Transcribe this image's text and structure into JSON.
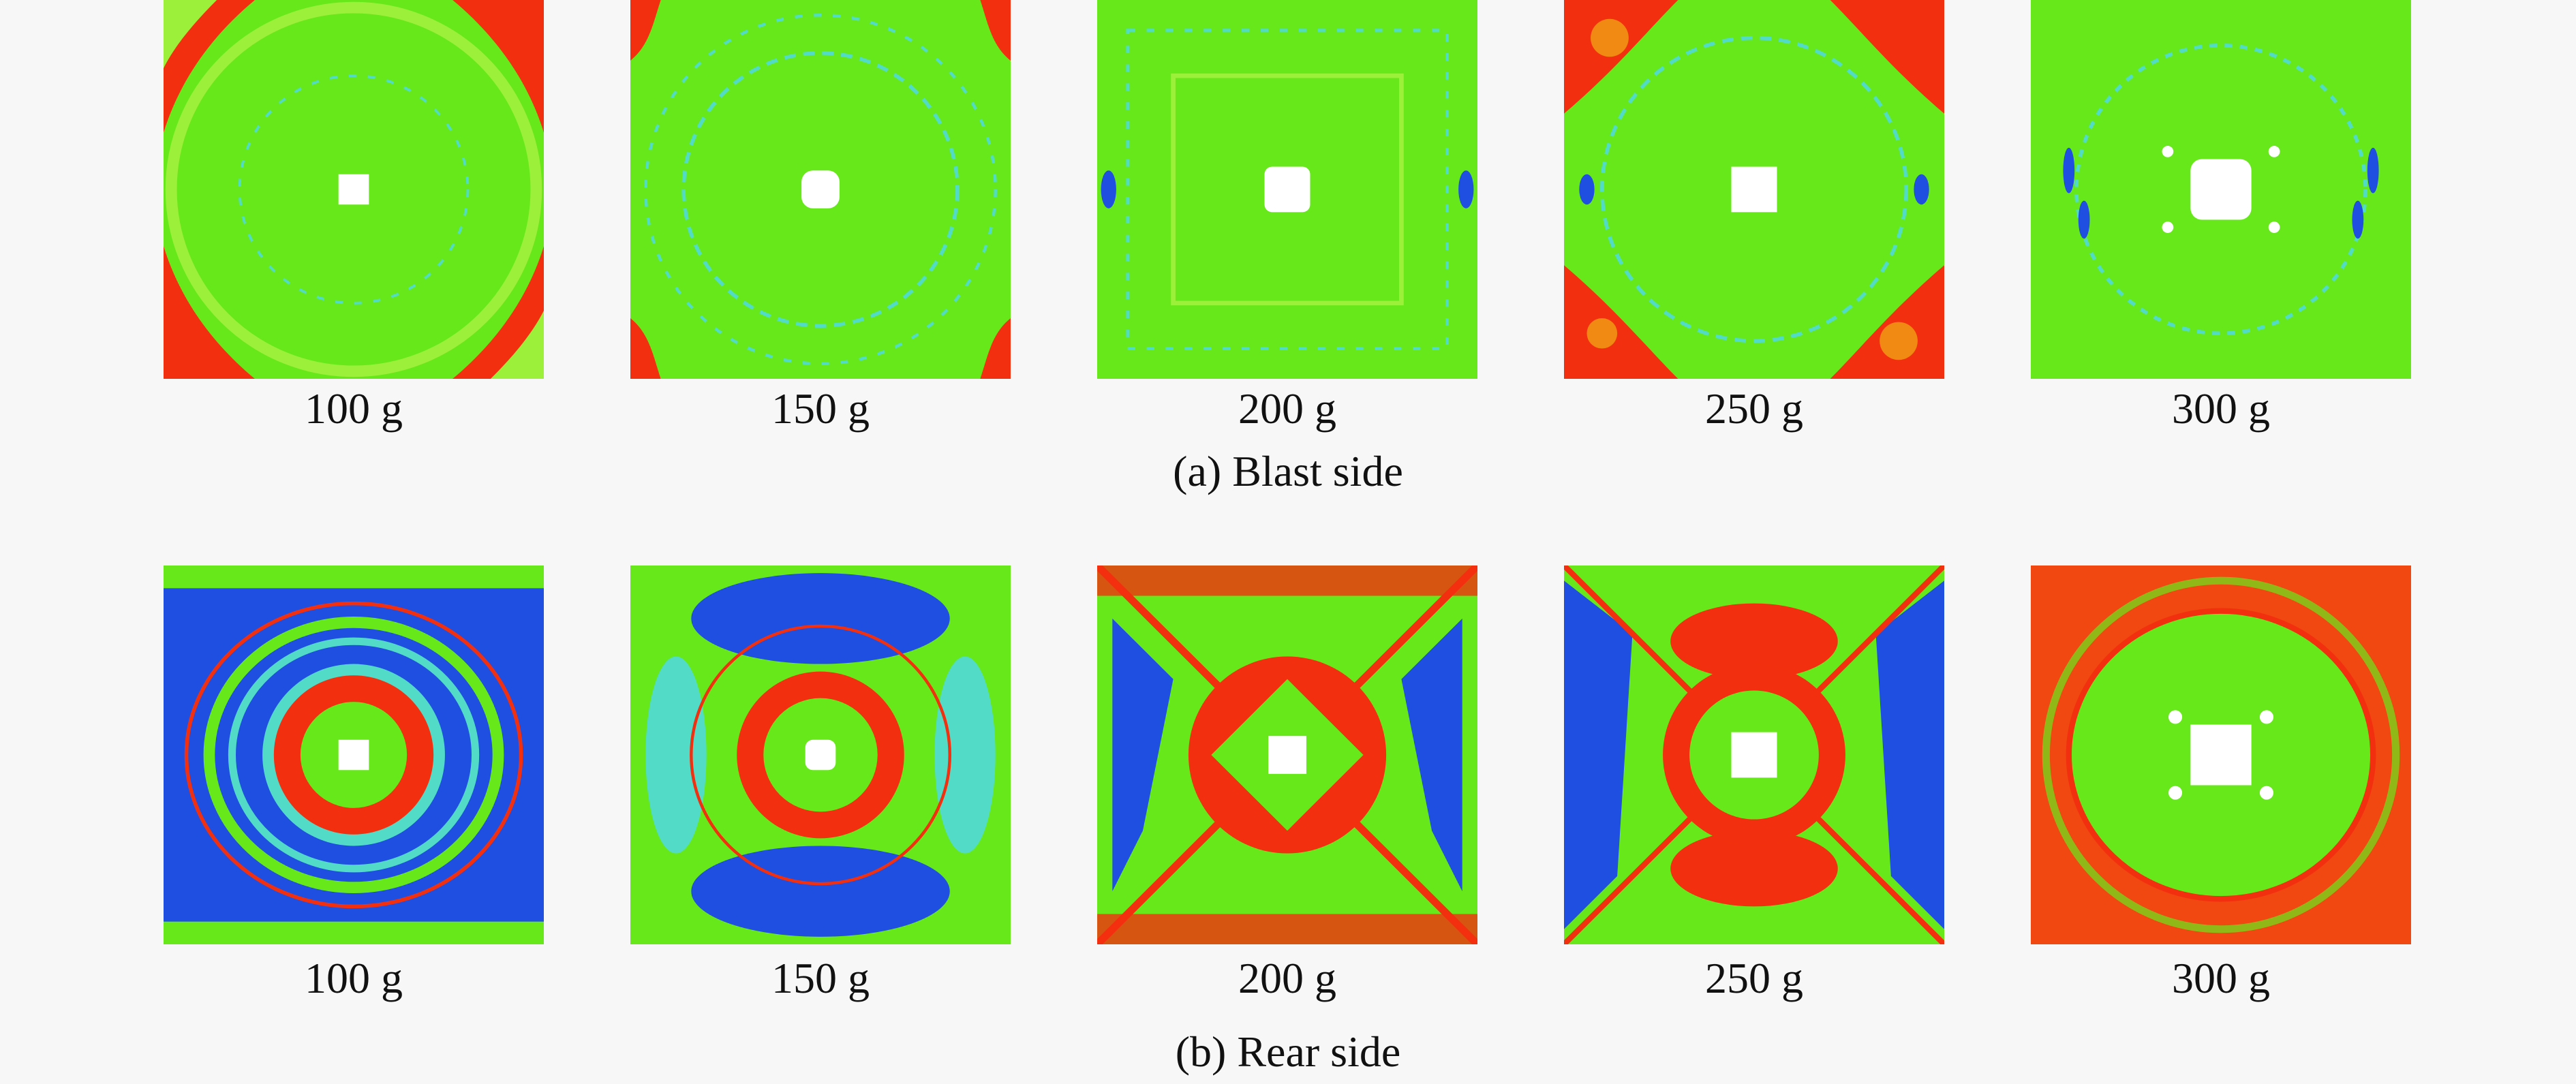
{
  "colors": {
    "green": "#66e81a",
    "light_green": "#9cf03a",
    "cyan": "#52dcc8",
    "blue": "#1f4fe0",
    "red": "#f2300f",
    "orange": "#f08a12",
    "white": "#ffffff"
  },
  "rows": [
    {
      "caption": "(a) Blast side",
      "panels": [
        {
          "label": "100 g",
          "pattern": "blast-corner-red"
        },
        {
          "label": "150 g",
          "pattern": "blast-edge-red"
        },
        {
          "label": "200 g",
          "pattern": "blast-uniform"
        },
        {
          "label": "250 g",
          "pattern": "blast-heavy-corner-red"
        },
        {
          "label": "300 g",
          "pattern": "blast-speckled-blue"
        }
      ]
    },
    {
      "caption": "(b) Rear side",
      "panels": [
        {
          "label": "100 g",
          "pattern": "rear-rings-blue"
        },
        {
          "label": "150 g",
          "pattern": "rear-blue-quadrants"
        },
        {
          "label": "200 g",
          "pattern": "rear-x-blue"
        },
        {
          "label": "250 g",
          "pattern": "rear-x-blue-red"
        },
        {
          "label": "300 g",
          "pattern": "rear-red-ring"
        }
      ]
    }
  ]
}
